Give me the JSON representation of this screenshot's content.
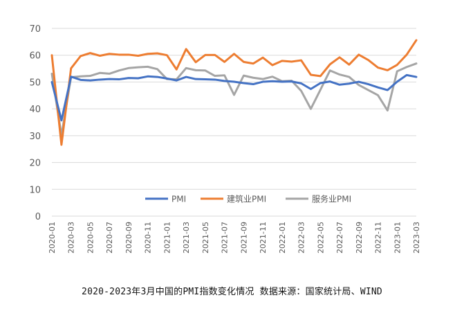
{
  "caption": "2020-2023年3月中国的PMI指数变化情况 数据来源：国家统计局、WIND",
  "chart_data": {
    "type": "line",
    "title": "",
    "xlabel": "",
    "ylabel": "",
    "ylim": [
      0,
      70
    ],
    "yticks": [
      0,
      10,
      20,
      30,
      40,
      50,
      60,
      70
    ],
    "grid": true,
    "legend_position": "inside-bottom-center",
    "x": [
      "2020-01",
      "2020-02",
      "2020-03",
      "2020-04",
      "2020-05",
      "2020-06",
      "2020-07",
      "2020-08",
      "2020-09",
      "2020-10",
      "2020-11",
      "2020-12",
      "2021-01",
      "2021-02",
      "2021-03",
      "2021-04",
      "2021-05",
      "2021-06",
      "2021-07",
      "2021-08",
      "2021-09",
      "2021-10",
      "2021-11",
      "2021-12",
      "2022-01",
      "2022-02",
      "2022-03",
      "2022-04",
      "2022-05",
      "2022-06",
      "2022-07",
      "2022-08",
      "2022-09",
      "2022-10",
      "2022-11",
      "2022-12",
      "2023-01",
      "2023-02",
      "2023-03"
    ],
    "xtick_labels": [
      "2020-01",
      "2020-03",
      "2020-05",
      "2020-07",
      "2020-09",
      "2020-11",
      "2021-01",
      "2021-03",
      "2021-05",
      "2021-07",
      "2021-09",
      "2021-11",
      "2022-01",
      "2022-03",
      "2022-05",
      "2022-07",
      "2022-09",
      "2022-11",
      "2023-01",
      "2023-03"
    ],
    "series": [
      {
        "name": "PMI",
        "color": "#4472C4",
        "values": [
          50.0,
          35.7,
          52.0,
          50.8,
          50.6,
          50.9,
          51.1,
          51.0,
          51.5,
          51.4,
          52.1,
          51.9,
          51.3,
          50.6,
          51.9,
          51.1,
          51.0,
          50.9,
          50.4,
          50.1,
          49.6,
          49.2,
          50.1,
          50.3,
          50.1,
          50.2,
          49.5,
          47.4,
          49.6,
          50.2,
          49.0,
          49.4,
          50.1,
          49.2,
          48.0,
          47.0,
          50.1,
          52.6,
          51.9
        ]
      },
      {
        "name": "建筑业PMI",
        "color": "#ED7D31",
        "values": [
          60.0,
          26.6,
          55.1,
          59.7,
          60.8,
          59.8,
          60.5,
          60.2,
          60.2,
          59.8,
          60.5,
          60.7,
          60.0,
          54.7,
          62.3,
          57.4,
          60.1,
          60.1,
          57.5,
          60.5,
          57.5,
          56.9,
          59.1,
          56.3,
          57.9,
          57.6,
          58.1,
          52.7,
          52.2,
          56.6,
          59.2,
          56.5,
          60.2,
          58.2,
          55.4,
          54.4,
          56.4,
          60.2,
          65.6
        ]
      },
      {
        "name": "服务业PMI",
        "color": "#A5A5A5",
        "values": [
          53.1,
          30.1,
          51.8,
          52.1,
          52.3,
          53.4,
          53.1,
          54.3,
          55.2,
          55.5,
          55.7,
          54.8,
          51.1,
          51.0,
          55.2,
          54.4,
          54.3,
          52.3,
          52.5,
          45.2,
          52.4,
          51.6,
          51.1,
          52.0,
          50.3,
          50.5,
          46.7,
          40.0,
          47.1,
          54.3,
          52.8,
          51.9,
          48.9,
          47.0,
          45.1,
          39.4,
          54.0,
          55.6,
          56.9
        ]
      }
    ]
  }
}
